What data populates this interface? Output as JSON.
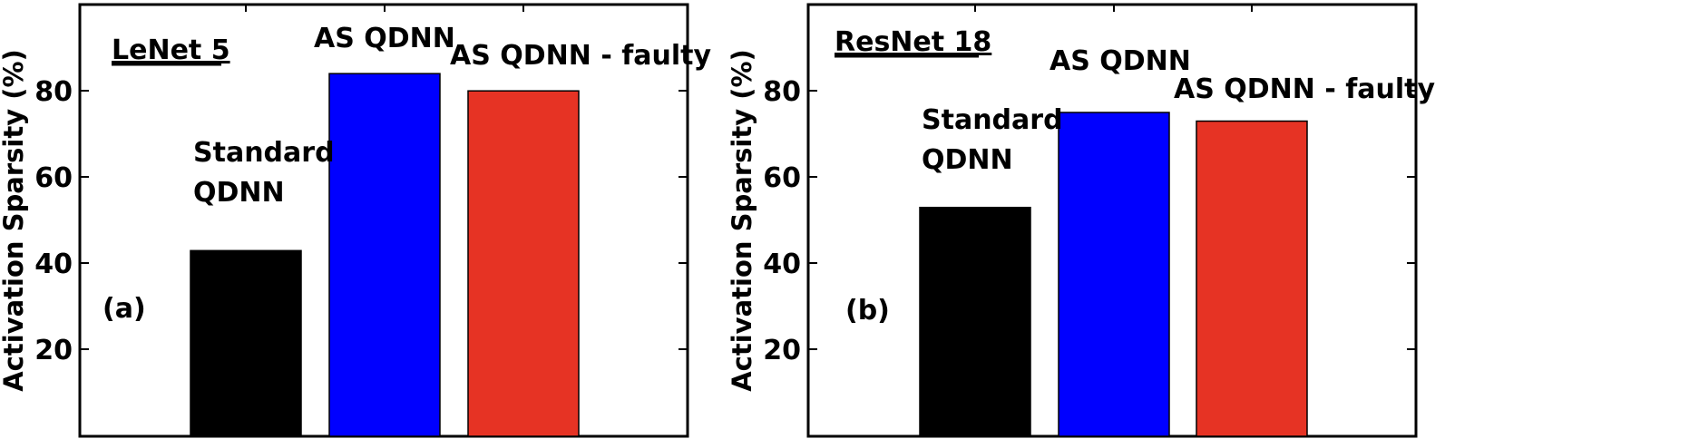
{
  "chart_data": [
    {
      "type": "bar",
      "panel_label": "(a)",
      "title": "LeNet 5",
      "ylabel": "Activation Sparsity (%)",
      "xlabel": "",
      "ylim": [
        0,
        100
      ],
      "yticks": [
        "20",
        "40",
        "60",
        "80"
      ],
      "categories": [
        "Standard QDNN",
        "AS QDNN",
        "AS QDNN - faulty"
      ],
      "values": [
        43,
        84,
        80
      ],
      "bar_labels": [
        [
          "Standard",
          "QDNN"
        ],
        [
          "AS QDNN"
        ],
        [
          "AS QDNN - faulty"
        ]
      ],
      "colors": [
        "#000000",
        "#0000ff",
        "#e63324"
      ],
      "grid": false
    },
    {
      "type": "bar",
      "panel_label": "(b)",
      "title": "ResNet 18",
      "ylabel": "Activation Sparsity (%)",
      "xlabel": "",
      "ylim": [
        0,
        100
      ],
      "yticks": [
        "20",
        "40",
        "60",
        "80"
      ],
      "categories": [
        "Standard QDNN",
        "AS QDNN",
        "AS QDNN - faulty"
      ],
      "values": [
        53,
        75,
        73
      ],
      "bar_labels": [
        [
          "Standard",
          "QDNN"
        ],
        [
          "AS QDNN"
        ],
        [
          "AS QDNN - faulty"
        ]
      ],
      "colors": [
        "#000000",
        "#0000ff",
        "#e63324"
      ],
      "grid": false
    }
  ]
}
